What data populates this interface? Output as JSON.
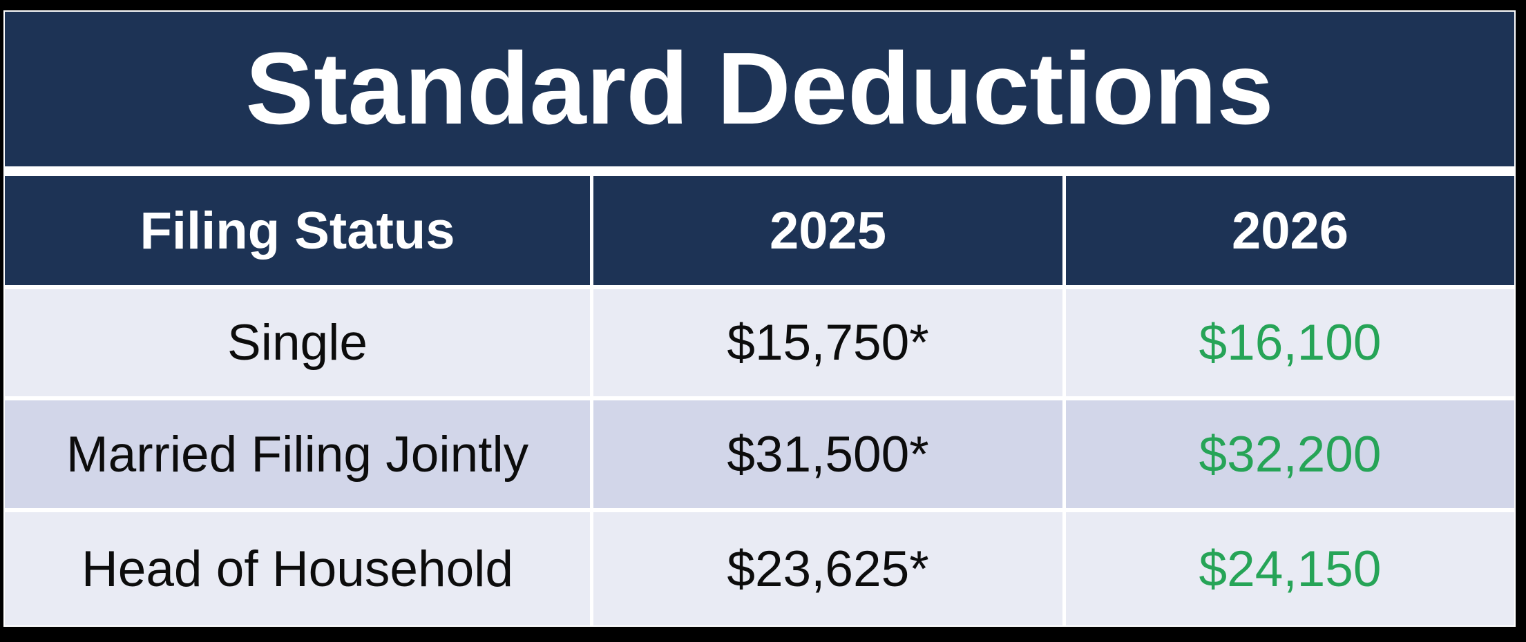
{
  "colors": {
    "frame_background": "#000000",
    "navy_header": "#1d3355",
    "cell_gap_white": "#ffffff",
    "row_light": "#e9ebf4",
    "row_alternate": "#d2d6e9",
    "value_text_dark": "#0c0c0c",
    "value_text_green_2026": "#26a457"
  },
  "chart_data": {
    "type": "table",
    "title": "Standard Deductions",
    "columns": [
      "Filing Status",
      "2025",
      "2026"
    ],
    "rows": [
      [
        "Single",
        "$15,750*",
        "$16,100"
      ],
      [
        "Married Filing Jointly",
        "$31,500*",
        "$32,200"
      ],
      [
        "Head of Household",
        "$23,625*",
        "$24,150"
      ]
    ]
  }
}
